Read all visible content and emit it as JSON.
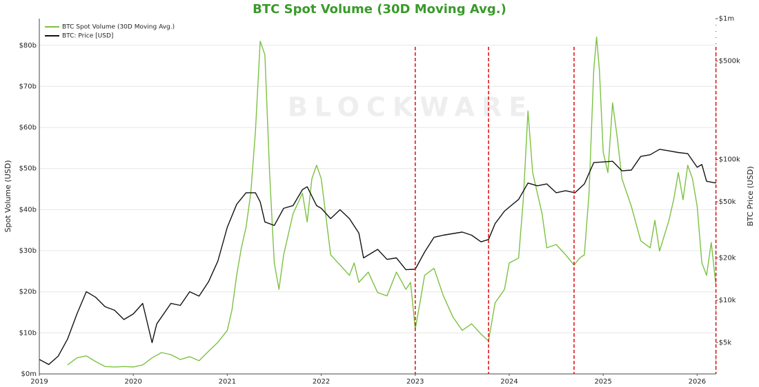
{
  "chart_data": {
    "type": "line",
    "title": "BTC Spot Volume (30D Moving Avg.)",
    "ylabel": "Spot Volume (USD)",
    "y2label": "BTC Price (USD)",
    "watermark": "BLOCKWARE",
    "legend": "upper left",
    "grid": true,
    "y2_log": true,
    "xlim": [
      2019,
      2026.2
    ],
    "xticks": [
      2019,
      2020,
      2021,
      2022,
      2023,
      2024,
      2025,
      2026
    ],
    "ylim": [
      0,
      86.5
    ],
    "yticks": [
      {
        "value": 0,
        "label": "$0m"
      },
      {
        "value": 10,
        "label": "$10b"
      },
      {
        "value": 20,
        "label": "$20b"
      },
      {
        "value": 30,
        "label": "$30b"
      },
      {
        "value": 40,
        "label": "$40b"
      },
      {
        "value": 50,
        "label": "$50b"
      },
      {
        "value": 60,
        "label": "$60b"
      },
      {
        "value": 70,
        "label": "$70b"
      },
      {
        "value": 80,
        "label": "$80b"
      }
    ],
    "y2lim": [
      3000,
      1000000
    ],
    "y2ticks": [
      {
        "value": 5000,
        "label": "$5k"
      },
      {
        "value": 10000,
        "label": "$10k"
      },
      {
        "value": 20000,
        "label": "$20k"
      },
      {
        "value": 50000,
        "label": "$50k"
      },
      {
        "value": 100000,
        "label": "$100k"
      },
      {
        "value": 500000,
        "label": "$500k"
      },
      {
        "value": 1000000,
        "label": "$1m"
      }
    ],
    "vlines": [
      2023.0,
      2023.78,
      2024.69,
      2026.2
    ],
    "vline_color": "#e0161b",
    "series": [
      {
        "name": "BTC Spot Volume (30D Moving Avg.)",
        "color": "#7cc142",
        "axis": "y",
        "x": [
          2019.3,
          2019.4,
          2019.5,
          2019.6,
          2019.7,
          2019.8,
          2019.9,
          2020.0,
          2020.1,
          2020.2,
          2020.3,
          2020.4,
          2020.5,
          2020.6,
          2020.7,
          2020.8,
          2020.9,
          2021.0,
          2021.05,
          2021.1,
          2021.15,
          2021.2,
          2021.25,
          2021.3,
          2021.35,
          2021.4,
          2021.45,
          2021.5,
          2021.55,
          2021.6,
          2021.7,
          2021.8,
          2021.85,
          2021.9,
          2021.95,
          2022.0,
          2022.1,
          2022.2,
          2022.3,
          2022.35,
          2022.4,
          2022.5,
          2022.6,
          2022.7,
          2022.8,
          2022.9,
          2022.95,
          2023.0,
          2023.05,
          2023.1,
          2023.2,
          2023.3,
          2023.4,
          2023.5,
          2023.6,
          2023.7,
          2023.78,
          2023.85,
          2023.95,
          2024.0,
          2024.1,
          2024.15,
          2024.2,
          2024.25,
          2024.35,
          2024.4,
          2024.5,
          2024.6,
          2024.69,
          2024.75,
          2024.8,
          2024.85,
          2024.9,
          2024.93,
          2024.96,
          2025.0,
          2025.05,
          2025.1,
          2025.15,
          2025.2,
          2025.3,
          2025.4,
          2025.5,
          2025.55,
          2025.6,
          2025.7,
          2025.75,
          2025.8,
          2025.85,
          2025.9,
          2025.95,
          2026.0,
          2026.05,
          2026.1,
          2026.15,
          2026.2
        ],
        "values": [
          2.2,
          3.9,
          4.4,
          3,
          1.8,
          1.7,
          1.8,
          1.7,
          2.2,
          3.9,
          5.2,
          4.7,
          3.5,
          4.2,
          3.2,
          5.5,
          7.7,
          10.6,
          15.6,
          24,
          30.7,
          35.7,
          44,
          59,
          81,
          77.7,
          49,
          27,
          20.6,
          29,
          39,
          44,
          37,
          47.5,
          50.8,
          47.5,
          29,
          26.5,
          24,
          27,
          22.3,
          24.8,
          19.8,
          19,
          24.8,
          20.6,
          22.3,
          10.9,
          17.3,
          24,
          25.7,
          19,
          13.9,
          10.6,
          12.2,
          9.7,
          8,
          17.3,
          20.6,
          27,
          28.2,
          42.4,
          64,
          49,
          39,
          30.7,
          31.5,
          29,
          26.5,
          28.2,
          29,
          44,
          74,
          82,
          74,
          54,
          49,
          66,
          57.5,
          47.5,
          40.8,
          32.4,
          30.7,
          37.4,
          29.9,
          37.4,
          42.4,
          49,
          42.4,
          50.8,
          47.5,
          40.8,
          27,
          24,
          32,
          21.5
        ]
      },
      {
        "name": "BTC: Price [USD]",
        "color": "#111111",
        "axis": "y2",
        "x": [
          2019.0,
          2019.1,
          2019.2,
          2019.3,
          2019.4,
          2019.5,
          2019.6,
          2019.7,
          2019.8,
          2019.9,
          2020.0,
          2020.1,
          2020.2,
          2020.25,
          2020.4,
          2020.5,
          2020.6,
          2020.7,
          2020.8,
          2020.9,
          2021.0,
          2021.1,
          2021.2,
          2021.3,
          2021.35,
          2021.4,
          2021.5,
          2021.6,
          2021.7,
          2021.8,
          2021.85,
          2021.95,
          2022.0,
          2022.1,
          2022.2,
          2022.3,
          2022.4,
          2022.45,
          2022.6,
          2022.7,
          2022.8,
          2022.9,
          2023.0,
          2023.1,
          2023.2,
          2023.3,
          2023.5,
          2023.6,
          2023.7,
          2023.78,
          2023.85,
          2023.95,
          2024.1,
          2024.2,
          2024.3,
          2024.4,
          2024.5,
          2024.6,
          2024.7,
          2024.8,
          2024.9,
          2025.0,
          2025.1,
          2025.2,
          2025.3,
          2025.4,
          2025.5,
          2025.6,
          2025.7,
          2025.8,
          2025.9,
          2026.0,
          2026.05,
          2026.1,
          2026.2
        ],
        "values": [
          3800,
          3500,
          4000,
          5300,
          8000,
          11500,
          10500,
          9000,
          8500,
          7300,
          8000,
          9500,
          5000,
          6800,
          9500,
          9200,
          11500,
          10700,
          13500,
          19000,
          33000,
          48000,
          58000,
          58000,
          50000,
          36000,
          34000,
          45000,
          47000,
          61000,
          64000,
          47000,
          45000,
          38000,
          44000,
          38000,
          30000,
          20000,
          23000,
          19500,
          20000,
          16500,
          16600,
          22000,
          28000,
          29000,
          30500,
          29000,
          26000,
          27000,
          35000,
          43000,
          52000,
          68000,
          65000,
          67000,
          58000,
          60000,
          58000,
          67000,
          95000,
          96000,
          97000,
          83000,
          84000,
          105000,
          108000,
          118000,
          115000,
          112000,
          110000,
          88000,
          92000,
          70000,
          68000
        ]
      }
    ]
  }
}
